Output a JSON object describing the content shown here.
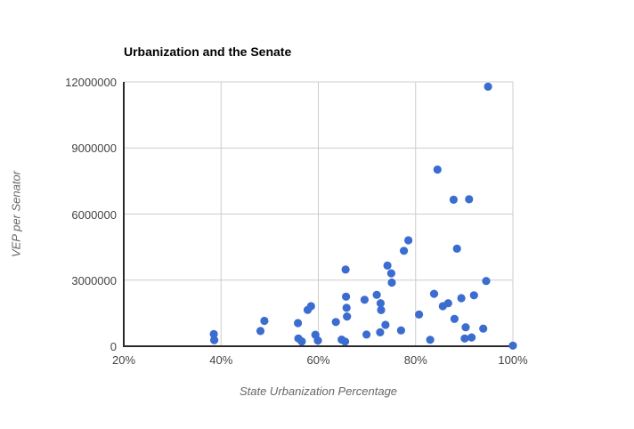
{
  "title": "Urbanization and the Senate",
  "chart_data": {
    "type": "scatter",
    "title": "Urbanization and the Senate",
    "xlabel": "State Urbanization Percentage",
    "ylabel": "VEP per Senator",
    "xlim": [
      20,
      100
    ],
    "ylim": [
      0,
      12000000
    ],
    "x_ticks": [
      20,
      40,
      60,
      80,
      100
    ],
    "x_tick_labels": [
      "20%",
      "40%",
      "60%",
      "80%",
      "100%"
    ],
    "y_ticks": [
      0,
      3000000,
      6000000,
      9000000,
      12000000
    ],
    "y_tick_labels": [
      "0",
      "3000000",
      "6000000",
      "9000000",
      "12000000"
    ],
    "grid": true,
    "legend": false,
    "points": [
      [
        38.5,
        550000
      ],
      [
        38.6,
        280000
      ],
      [
        48.1,
        690000
      ],
      [
        48.9,
        1150000
      ],
      [
        55.8,
        1050000
      ],
      [
        55.9,
        350000
      ],
      [
        56.6,
        220000
      ],
      [
        57.8,
        1650000
      ],
      [
        58.5,
        1820000
      ],
      [
        59.4,
        520000
      ],
      [
        59.9,
        260000
      ],
      [
        63.6,
        1100000
      ],
      [
        64.8,
        300000
      ],
      [
        65.5,
        210000
      ],
      [
        65.6,
        3480000
      ],
      [
        65.7,
        2250000
      ],
      [
        65.8,
        1740000
      ],
      [
        65.9,
        1350000
      ],
      [
        69.5,
        2110000
      ],
      [
        69.9,
        530000
      ],
      [
        72.0,
        2330000
      ],
      [
        72.7,
        630000
      ],
      [
        72.8,
        1950000
      ],
      [
        72.9,
        1640000
      ],
      [
        73.8,
        970000
      ],
      [
        74.2,
        3660000
      ],
      [
        75.0,
        3310000
      ],
      [
        75.1,
        2890000
      ],
      [
        77.0,
        720000
      ],
      [
        77.6,
        4330000
      ],
      [
        78.5,
        4810000
      ],
      [
        80.7,
        1440000
      ],
      [
        83.0,
        290000
      ],
      [
        83.8,
        2380000
      ],
      [
        84.5,
        8020000
      ],
      [
        85.6,
        1820000
      ],
      [
        86.7,
        1950000
      ],
      [
        87.8,
        6650000
      ],
      [
        88.0,
        1240000
      ],
      [
        88.5,
        4430000
      ],
      [
        89.4,
        2180000
      ],
      [
        90.1,
        350000
      ],
      [
        90.3,
        860000
      ],
      [
        91.0,
        6670000
      ],
      [
        91.5,
        400000
      ],
      [
        92.0,
        2310000
      ],
      [
        93.9,
        800000
      ],
      [
        94.5,
        2960000
      ],
      [
        94.9,
        11780000
      ],
      [
        100.0,
        30000
      ]
    ]
  },
  "colors": {
    "point": "#3B6CD0",
    "gridline": "#CCCCCC",
    "axis_line": "#2B2B2B",
    "tick_label": "#444444",
    "axis_title": "#666666",
    "title": "#000000",
    "background": "#FFFFFF"
  }
}
